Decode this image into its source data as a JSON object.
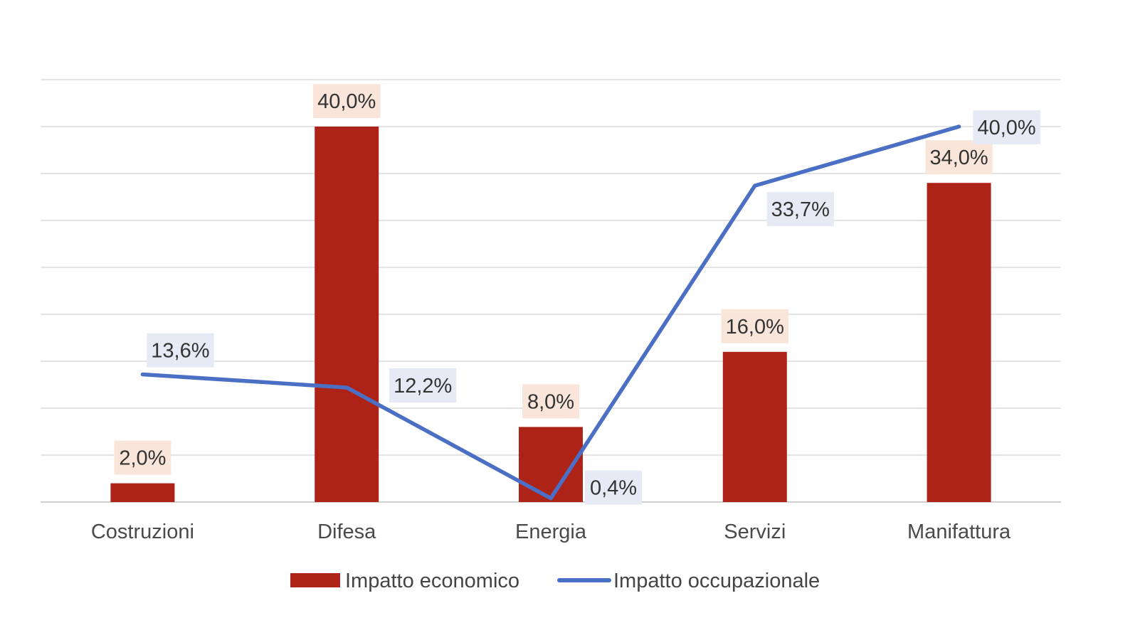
{
  "chart_data": {
    "type": "bar",
    "categories": [
      "Costruzioni",
      "Difesa",
      "Energia",
      "Servizi",
      "Manifattura"
    ],
    "series": [
      {
        "name": "Impatto economico",
        "kind": "bar",
        "color": "#ad2318",
        "label_bg": "#f9e5d9",
        "values": [
          2.0,
          40.0,
          8.0,
          16.0,
          34.0
        ],
        "labels": [
          "2,0%",
          "40,0%",
          "8,0%",
          "16,0%",
          "34,0%"
        ]
      },
      {
        "name": "Impatto occupazionale",
        "kind": "line",
        "color": "#4a6fc4",
        "label_bg": "#e6eaf4",
        "values": [
          13.6,
          12.2,
          0.4,
          33.7,
          40.0
        ],
        "labels": [
          "13,6%",
          "12,2%",
          "0,4%",
          "33,7%",
          "40,0%"
        ]
      }
    ],
    "ylim": [
      0,
      45
    ],
    "grid": true,
    "y_tick_labels": false,
    "legend": "bottom"
  }
}
